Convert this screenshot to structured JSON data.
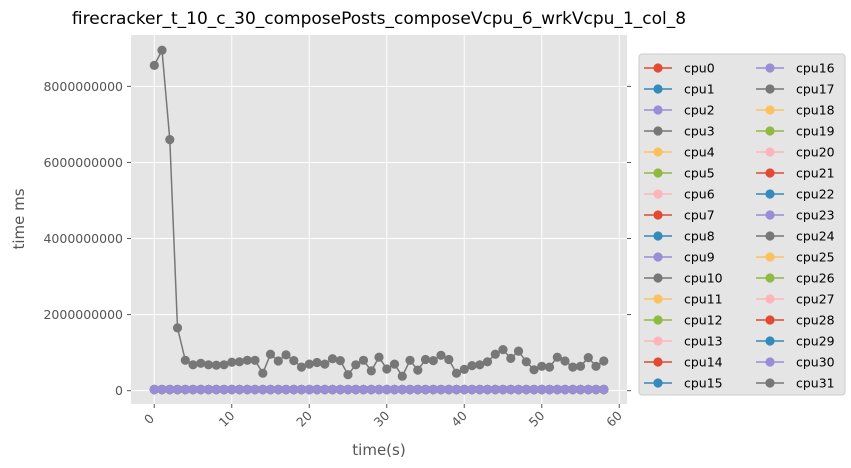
{
  "chart_data": {
    "type": "line",
    "title": "firecracker_t_10_c_30_composePosts_composeVcpu_6_wrkVcpu_1_col_8",
    "xlabel": "time(s)",
    "ylabel": "time ms",
    "xlim": [
      -3,
      61
    ],
    "ylim": [
      -350000000,
      9350000000
    ],
    "xticks": [
      0,
      10,
      20,
      30,
      40,
      50,
      60
    ],
    "yticks": [
      0,
      2000000000,
      4000000000,
      6000000000,
      8000000000
    ],
    "xtick_labels": [
      "0",
      "10",
      "20",
      "30",
      "40",
      "50",
      "60"
    ],
    "ytick_labels": [
      "0",
      "2000000000",
      "4000000000",
      "6000000000",
      "8000000000"
    ],
    "x_tick_rotation": 45,
    "grid": true,
    "legend_position": "outside right",
    "legend_columns": 2,
    "palette": [
      "#E24A33",
      "#348ABD",
      "#988ED5",
      "#777777",
      "#FBC15E",
      "#8EBA42",
      "#FFB5B8"
    ],
    "x": [
      0,
      1,
      2,
      3,
      4,
      5,
      6,
      7,
      8,
      9,
      10,
      11,
      12,
      13,
      14,
      15,
      16,
      17,
      18,
      19,
      20,
      21,
      22,
      23,
      24,
      25,
      26,
      27,
      28,
      29,
      30,
      31,
      32,
      33,
      34,
      35,
      36,
      37,
      38,
      39,
      40,
      41,
      42,
      43,
      44,
      45,
      46,
      47,
      48,
      49,
      50,
      51,
      52,
      53,
      54,
      55,
      56,
      57,
      58
    ],
    "highlight_series": {
      "name": "cpu31",
      "values": [
        8550000000,
        8950000000,
        6600000000,
        1650000000,
        800000000,
        680000000,
        720000000,
        680000000,
        670000000,
        680000000,
        750000000,
        760000000,
        800000000,
        800000000,
        460000000,
        960000000,
        780000000,
        940000000,
        790000000,
        620000000,
        700000000,
        740000000,
        700000000,
        840000000,
        790000000,
        420000000,
        680000000,
        800000000,
        520000000,
        880000000,
        570000000,
        700000000,
        380000000,
        800000000,
        540000000,
        820000000,
        790000000,
        930000000,
        820000000,
        460000000,
        560000000,
        660000000,
        680000000,
        760000000,
        960000000,
        1080000000,
        850000000,
        1040000000,
        760000000,
        550000000,
        640000000,
        620000000,
        880000000,
        780000000,
        620000000,
        640000000,
        870000000,
        640000000,
        780000000
      ]
    },
    "baseline_series_value": 30000000,
    "series": [
      {
        "name": "cpu0"
      },
      {
        "name": "cpu1"
      },
      {
        "name": "cpu2"
      },
      {
        "name": "cpu3"
      },
      {
        "name": "cpu4"
      },
      {
        "name": "cpu5"
      },
      {
        "name": "cpu6"
      },
      {
        "name": "cpu7"
      },
      {
        "name": "cpu8"
      },
      {
        "name": "cpu9"
      },
      {
        "name": "cpu10"
      },
      {
        "name": "cpu11"
      },
      {
        "name": "cpu12"
      },
      {
        "name": "cpu13"
      },
      {
        "name": "cpu14"
      },
      {
        "name": "cpu15"
      },
      {
        "name": "cpu16"
      },
      {
        "name": "cpu17"
      },
      {
        "name": "cpu18"
      },
      {
        "name": "cpu19"
      },
      {
        "name": "cpu20"
      },
      {
        "name": "cpu21"
      },
      {
        "name": "cpu22"
      },
      {
        "name": "cpu23"
      },
      {
        "name": "cpu24"
      },
      {
        "name": "cpu25"
      },
      {
        "name": "cpu26"
      },
      {
        "name": "cpu27"
      },
      {
        "name": "cpu28"
      },
      {
        "name": "cpu29"
      },
      {
        "name": "cpu30"
      },
      {
        "name": "cpu31"
      }
    ]
  }
}
